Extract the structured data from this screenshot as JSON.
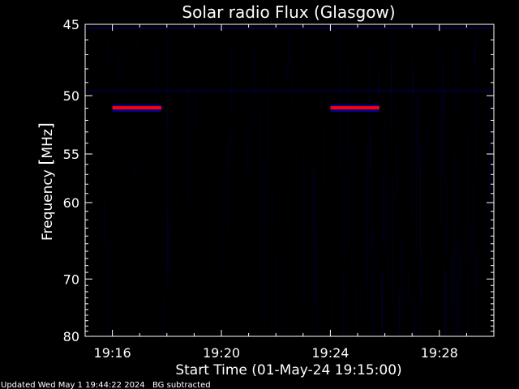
{
  "chart_data": {
    "type": "heatmap",
    "title": "Solar radio Flux (Glasgow)",
    "ylabel_parts": [
      "Frequency ",
      "[",
      "MHz",
      "]"
    ],
    "xlabel": "Start Time (01-May-24 19:15:00)",
    "x_tick_labels": [
      "19:16",
      "19:20",
      "19:24",
      "19:28"
    ],
    "x_ticks_min": [
      16,
      20,
      24,
      28
    ],
    "x_range_min": [
      15,
      30
    ],
    "y_tick_labels": [
      "45",
      "50",
      "55",
      "60",
      "70",
      "80"
    ],
    "y_ticks_mhz": [
      45,
      50,
      55,
      60,
      70,
      80
    ],
    "y_range_mhz": [
      45,
      80
    ],
    "y_scale": "reciprocal",
    "background_color": "#000000",
    "plot_color": "#000000",
    "axis_color": "#ffffff",
    "signal_colors": [
      "#ff0000",
      "#0000ff"
    ],
    "features": [
      {
        "name": "interference-band-1",
        "t_start_min": 16.0,
        "t_end_min": 17.8,
        "freq_mhz": 50.9
      },
      {
        "name": "interference-band-2",
        "t_start_min": 24.0,
        "t_end_min": 25.8,
        "freq_mhz": 50.9
      }
    ],
    "grid": false,
    "legend": "none"
  },
  "footer": {
    "updated": "Updated Wed May  1 19:44:22 2024",
    "bg_note": "BG subtracted"
  }
}
